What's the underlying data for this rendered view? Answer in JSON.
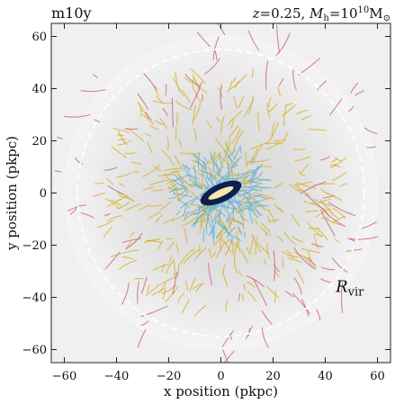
{
  "chart_data": {
    "type": "scatter",
    "title_left": "m10y",
    "title_right": {
      "z_symbol": "z",
      "z_value": "=0.25, ",
      "m_symbol": "M",
      "m_subscript": "h",
      "m_eq": "=10",
      "m_exponent": "10",
      "m_unit": "M",
      "m_unit_subscript": "⊙"
    },
    "xlabel": "x position (pkpc)",
    "ylabel": "y position (pkpc)",
    "xlim": [
      -65,
      65
    ],
    "ylim": [
      -65,
      65
    ],
    "x_ticks": [
      -60,
      -40,
      -20,
      0,
      20,
      40,
      60
    ],
    "y_ticks": [
      -60,
      -40,
      -20,
      0,
      20,
      40,
      60
    ],
    "x_tick_labels": [
      "−60",
      "−40",
      "−20",
      "0",
      "20",
      "40",
      "60"
    ],
    "y_tick_labels": [
      "−60",
      "−40",
      "−20",
      "0",
      "20",
      "40",
      "60"
    ],
    "virial_radius": 55,
    "virial_label": "R",
    "virial_label_subscript": "vir",
    "virial_label_position": [
      44,
      -38
    ],
    "galaxy": {
      "center": [
        0,
        0
      ],
      "half_length": 8.5,
      "half_width": 3.5,
      "angle_deg": 25
    },
    "series": [
      {
        "color": "#d6b12a",
        "r_min": 8,
        "r_max": 50,
        "count": 340
      },
      {
        "color": "#5ab3e0",
        "r_min": 2,
        "r_max": 20,
        "count": 200
      },
      {
        "color": "#cc6680",
        "r_min": 35,
        "r_max": 68,
        "count": 90
      }
    ],
    "colors": {
      "background_inner": "#d4d4d4",
      "background_outer": "#f5f5f5",
      "circle": "#ffffff",
      "galaxy_outer": "#0d1f4a",
      "galaxy_inner": "#f5e9b0"
    }
  }
}
